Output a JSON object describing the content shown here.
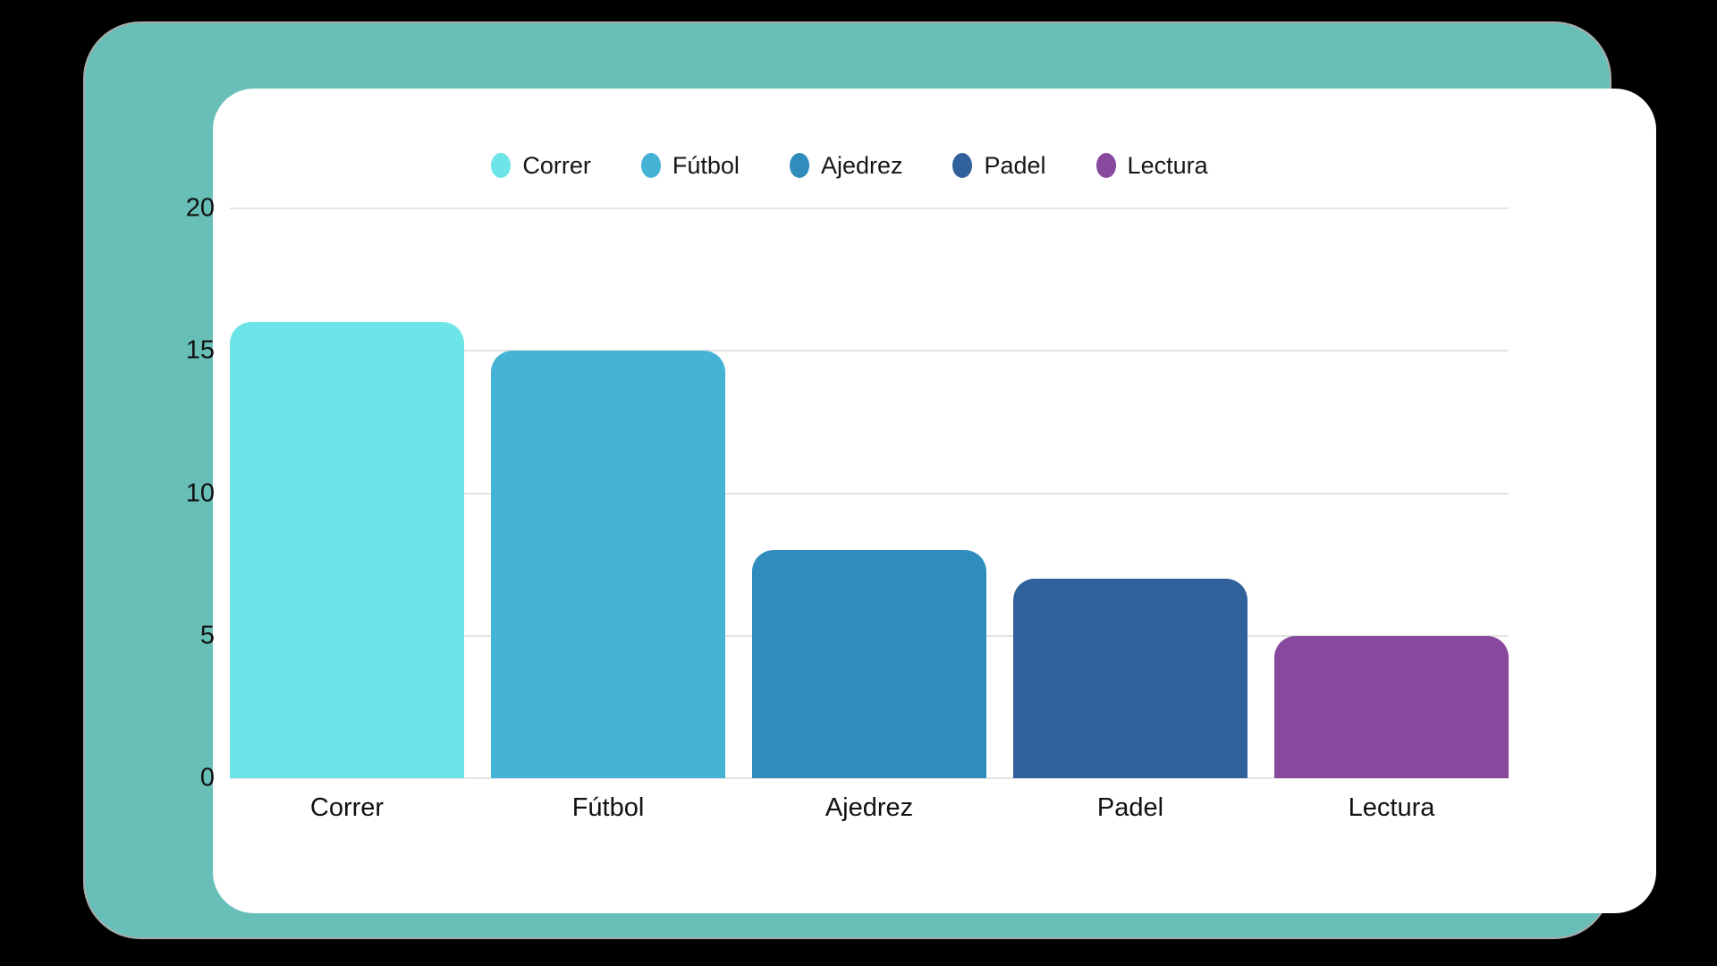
{
  "page": {
    "background_color": "#000000",
    "frame_color": "#68BFB8",
    "card_color": "#FFFFFF"
  },
  "chart_data": {
    "type": "bar",
    "title": "",
    "categories": [
      "Correr",
      "Fútbol",
      "Ajedrez",
      "Padel",
      "Lectura"
    ],
    "values": [
      16,
      15,
      8,
      7,
      5
    ],
    "colors": [
      "#6CE4E8",
      "#45B3D6",
      "#2F8CBD",
      "#30619B",
      "#88489E"
    ],
    "legend": {
      "position": "top",
      "entries": [
        "Correr",
        "Fútbol",
        "Ajedrez",
        "Padel",
        "Lectura"
      ]
    },
    "xlabel": "",
    "ylabel": "",
    "ylim": [
      0,
      20
    ],
    "y_ticks": [
      "0",
      "5",
      "10",
      "15",
      "20"
    ],
    "grid": true,
    "gridline_color": "#E4E4E4",
    "axis_text_color": "#111111"
  }
}
